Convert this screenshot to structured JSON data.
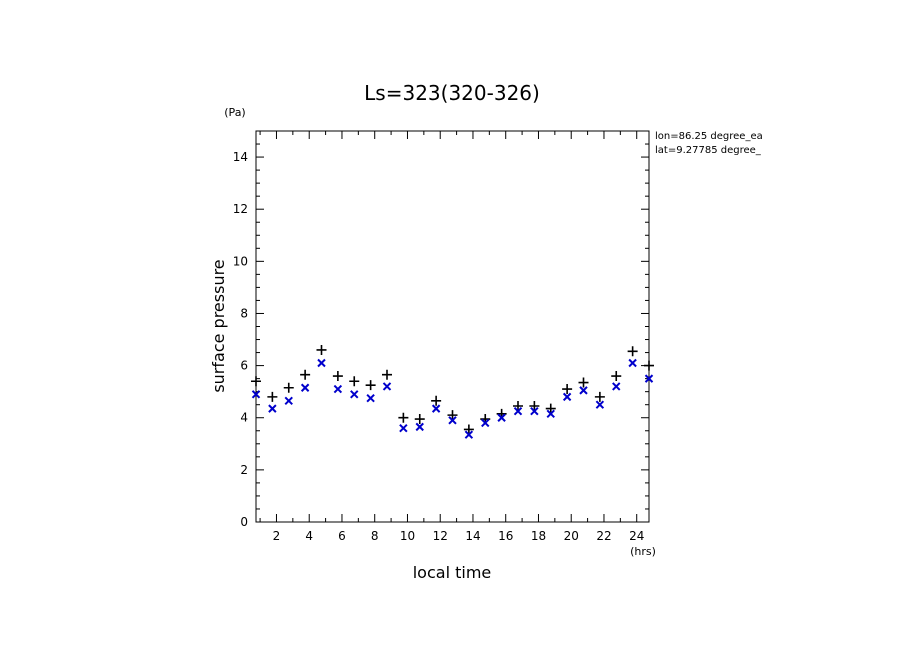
{
  "chart_data": {
    "type": "scatter",
    "title": "Ls=323(320-326)",
    "xlabel": "local time",
    "ylabel": "surface pressure",
    "x_unit": "(hrs)",
    "y_unit": "(Pa)",
    "annotations": [
      "lon=86.25 degree_ea",
      "lat=9.27785 degree_"
    ],
    "xlim": [
      0.75,
      24.75
    ],
    "ylim": [
      0,
      15
    ],
    "x_ticks": [
      2,
      4,
      6,
      8,
      10,
      12,
      14,
      16,
      18,
      20,
      22,
      24
    ],
    "y_ticks": [
      0,
      2,
      4,
      6,
      8,
      10,
      12,
      14
    ],
    "x_ticks_labels": [
      "2",
      "4",
      "6",
      "8",
      "10",
      "12",
      "14",
      "16",
      "18",
      "20",
      "22",
      "24"
    ],
    "y_ticks_labels": [
      "0",
      "2",
      "4",
      "6",
      "8",
      "10",
      "12",
      "14"
    ],
    "grid": false,
    "x": [
      0.75,
      1.75,
      2.75,
      3.75,
      4.75,
      5.75,
      6.75,
      7.75,
      8.75,
      9.75,
      10.75,
      11.75,
      12.75,
      13.75,
      14.75,
      15.75,
      16.75,
      17.75,
      18.75,
      19.75,
      20.75,
      21.75,
      22.75,
      23.75,
      24.75
    ],
    "series": [
      {
        "marker": "plus",
        "color": "#000000",
        "values": [
          5.4,
          4.8,
          5.15,
          5.65,
          6.6,
          5.6,
          5.4,
          5.25,
          5.65,
          4.0,
          3.95,
          4.65,
          4.1,
          3.55,
          3.95,
          4.15,
          4.45,
          4.45,
          4.35,
          5.1,
          5.35,
          4.8,
          5.6,
          6.55,
          6.0
        ]
      },
      {
        "marker": "cross",
        "color": "#0000cc",
        "values": [
          4.9,
          4.35,
          4.65,
          5.15,
          6.1,
          5.1,
          4.9,
          4.75,
          5.2,
          3.6,
          3.65,
          4.35,
          3.9,
          3.35,
          3.8,
          4.0,
          4.25,
          4.25,
          4.15,
          4.8,
          5.05,
          4.5,
          5.2,
          6.1,
          5.5
        ]
      }
    ]
  }
}
